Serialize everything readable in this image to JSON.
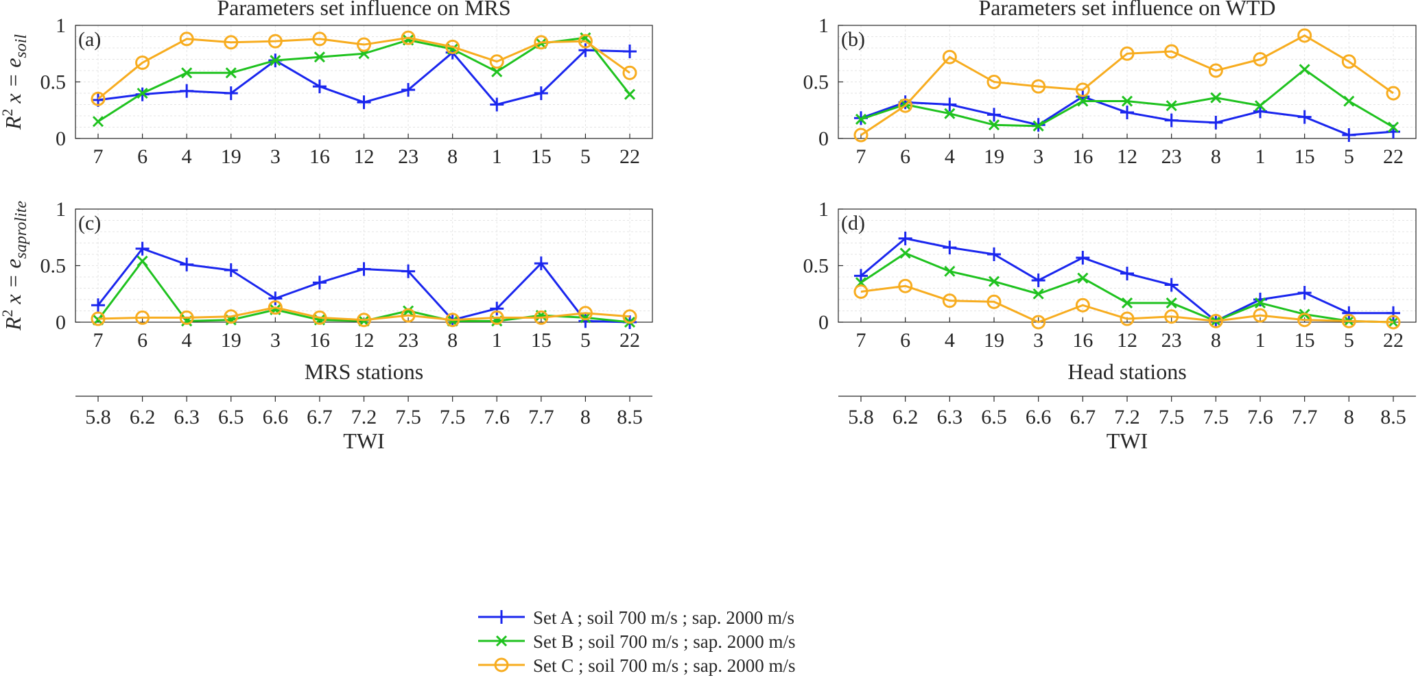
{
  "chart_data": [
    {
      "type": "line",
      "panel": "(a)",
      "title": "Parameters set influence on MRS",
      "ylabel": "R² x = e_soil",
      "ylabel_parts": {
        "prefix": "R",
        "sup": "2",
        "mid": " x = e",
        "sub": "soil"
      },
      "xlabel": "",
      "ylim": [
        0,
        1
      ],
      "yticks": [
        "0",
        "0.5",
        "1"
      ],
      "categories": [
        "7",
        "6",
        "4",
        "19",
        "3",
        "16",
        "12",
        "23",
        "8",
        "1",
        "15",
        "5",
        "22"
      ],
      "series": [
        {
          "name": "Set A",
          "values": [
            0.34,
            0.39,
            0.42,
            0.4,
            0.69,
            0.46,
            0.32,
            0.43,
            0.76,
            0.3,
            0.4,
            0.78,
            0.77
          ]
        },
        {
          "name": "Set B",
          "values": [
            0.15,
            0.4,
            0.58,
            0.58,
            0.69,
            0.72,
            0.75,
            0.87,
            0.79,
            0.59,
            0.84,
            0.89,
            0.39
          ]
        },
        {
          "name": "Set C",
          "values": [
            0.35,
            0.67,
            0.88,
            0.85,
            0.86,
            0.88,
            0.83,
            0.89,
            0.81,
            0.68,
            0.85,
            0.86,
            0.58
          ]
        }
      ]
    },
    {
      "type": "line",
      "panel": "(b)",
      "title": "Parameters set influence on WTD",
      "ylabel": "",
      "xlabel": "",
      "ylim": [
        0,
        1
      ],
      "yticks": [
        "0",
        "0.5",
        "1"
      ],
      "categories": [
        "7",
        "6",
        "4",
        "19",
        "3",
        "16",
        "12",
        "23",
        "8",
        "1",
        "15",
        "5",
        "22"
      ],
      "series": [
        {
          "name": "Set A",
          "values": [
            0.18,
            0.32,
            0.3,
            0.21,
            0.12,
            0.37,
            0.23,
            0.16,
            0.14,
            0.24,
            0.19,
            0.03,
            0.06
          ]
        },
        {
          "name": "Set B",
          "values": [
            0.17,
            0.3,
            0.22,
            0.12,
            0.11,
            0.33,
            0.33,
            0.29,
            0.36,
            0.29,
            0.61,
            0.33,
            0.1
          ]
        },
        {
          "name": "Set C",
          "values": [
            0.03,
            0.29,
            0.72,
            0.5,
            0.46,
            0.43,
            0.75,
            0.77,
            0.6,
            0.7,
            0.91,
            0.68,
            0.4
          ]
        }
      ]
    },
    {
      "type": "line",
      "panel": "(c)",
      "title": "",
      "ylabel": "R² x = e_saprolite",
      "ylabel_parts": {
        "prefix": "R",
        "sup": "2",
        "mid": " x = e",
        "sub": "saprolite"
      },
      "xlabel": "MRS stations",
      "x2label": "TWI",
      "x2ticks": [
        "5.8",
        "6.2",
        "6.3",
        "6.5",
        "6.6",
        "6.7",
        "7.2",
        "7.5",
        "7.5",
        "7.6",
        "7.7",
        "8",
        "8.5"
      ],
      "ylim": [
        0,
        1
      ],
      "yticks": [
        "0",
        "0.5",
        "1"
      ],
      "categories": [
        "7",
        "6",
        "4",
        "19",
        "3",
        "16",
        "12",
        "23",
        "8",
        "1",
        "15",
        "5",
        "22"
      ],
      "series": [
        {
          "name": "Set A",
          "values": [
            0.15,
            0.65,
            0.51,
            0.46,
            0.21,
            0.35,
            0.47,
            0.45,
            0.02,
            0.12,
            0.52,
            0.01,
            0.0
          ]
        },
        {
          "name": "Set B",
          "values": [
            0.02,
            0.54,
            0.01,
            0.02,
            0.11,
            0.02,
            0.01,
            0.1,
            0.01,
            0.01,
            0.06,
            0.04,
            0.0
          ]
        },
        {
          "name": "Set C",
          "values": [
            0.03,
            0.04,
            0.04,
            0.05,
            0.13,
            0.04,
            0.02,
            0.06,
            0.02,
            0.04,
            0.04,
            0.08,
            0.05
          ]
        }
      ]
    },
    {
      "type": "line",
      "panel": "(d)",
      "title": "",
      "ylabel": "",
      "xlabel": "Head stations",
      "x2label": "TWI",
      "x2ticks": [
        "5.8",
        "6.2",
        "6.3",
        "6.5",
        "6.6",
        "6.7",
        "7.2",
        "7.5",
        "7.5",
        "7.6",
        "7.7",
        "8",
        "8.5"
      ],
      "ylim": [
        0,
        1
      ],
      "yticks": [
        "0",
        "0.5",
        "1"
      ],
      "categories": [
        "7",
        "6",
        "4",
        "19",
        "3",
        "16",
        "12",
        "23",
        "8",
        "1",
        "15",
        "5",
        "22"
      ],
      "series": [
        {
          "name": "Set A",
          "values": [
            0.41,
            0.74,
            0.66,
            0.6,
            0.37,
            0.57,
            0.43,
            0.33,
            0.01,
            0.2,
            0.26,
            0.08,
            0.08
          ]
        },
        {
          "name": "Set B",
          "values": [
            0.35,
            0.61,
            0.45,
            0.36,
            0.25,
            0.39,
            0.17,
            0.17,
            0.01,
            0.17,
            0.07,
            0.01,
            0.0
          ]
        },
        {
          "name": "Set C",
          "values": [
            0.27,
            0.32,
            0.19,
            0.18,
            0.0,
            0.15,
            0.03,
            0.05,
            0.01,
            0.06,
            0.02,
            0.01,
            0.0
          ]
        }
      ]
    }
  ],
  "legend": {
    "entries": [
      {
        "label": "Set A ; soil 700 m/s ; sap. 2000 m/s",
        "color": "#1a26ee",
        "marker": "plus"
      },
      {
        "label": "Set B ; soil 700 m/s ; sap. 2000 m/s",
        "color": "#1fc21f",
        "marker": "x"
      },
      {
        "label": "Set C ; soil 700 m/s ; sap. 2000 m/s",
        "color": "#f7ac1f",
        "marker": "circle"
      }
    ]
  },
  "colors": {
    "set_a": "#1a26ee",
    "set_b": "#1fc21f",
    "set_c": "#f7ac1f"
  }
}
